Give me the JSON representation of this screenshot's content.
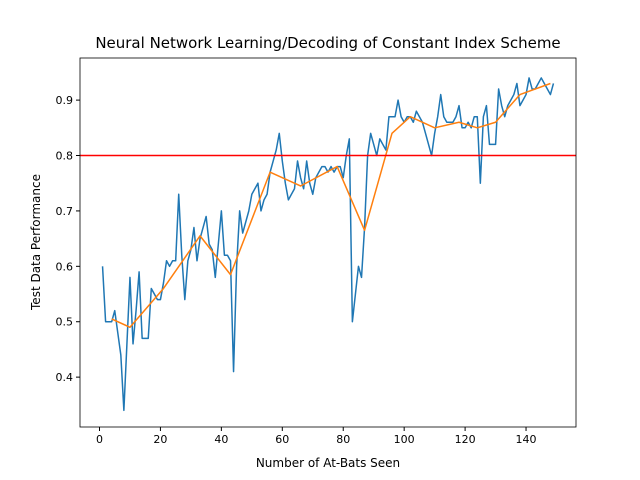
{
  "chart_data": {
    "type": "line",
    "title": "Neural Network Learning/Decoding of Constant Index Scheme",
    "x_label": "Number of At-Bats Seen",
    "y_label": "Test Data Performance",
    "xlim": [
      -6.4,
      156.4
    ],
    "ylim": [
      0.31,
      0.976
    ],
    "xticks": [
      0,
      20,
      40,
      60,
      80,
      100,
      120,
      140
    ],
    "yticks": [
      0.4,
      0.5,
      0.6,
      0.7,
      0.8,
      0.9
    ],
    "hline": {
      "value": 0.8,
      "color": "#ff0000"
    },
    "series": [
      {
        "color": "#1f77b4",
        "x": [
          1,
          2,
          3,
          4,
          5,
          6,
          7,
          8,
          9,
          10,
          11,
          12,
          13,
          14,
          15,
          16,
          17,
          18,
          19,
          20,
          21,
          22,
          23,
          24,
          25,
          26,
          27,
          28,
          29,
          30,
          31,
          32,
          33,
          34,
          35,
          36,
          37,
          38,
          39,
          40,
          41,
          42,
          43,
          44,
          45,
          46,
          47,
          48,
          49,
          50,
          51,
          52,
          53,
          54,
          55,
          56,
          57,
          58,
          59,
          60,
          61,
          62,
          63,
          64,
          65,
          66,
          67,
          68,
          69,
          70,
          71,
          72,
          73,
          74,
          75,
          76,
          77,
          78,
          79,
          80,
          81,
          82,
          83,
          84,
          85,
          86,
          87,
          88,
          89,
          90,
          91,
          92,
          93,
          94,
          95,
          96,
          97,
          98,
          99,
          100,
          101,
          102,
          103,
          104,
          105,
          106,
          107,
          108,
          109,
          110,
          111,
          112,
          113,
          114,
          115,
          116,
          117,
          118,
          119,
          120,
          121,
          122,
          123,
          124,
          125,
          126,
          127,
          128,
          129,
          130,
          131,
          132,
          133,
          134,
          135,
          136,
          137,
          138,
          139,
          140,
          141,
          142,
          143,
          144,
          145,
          146,
          147,
          148,
          149
        ],
        "values": [
          0.6,
          0.5,
          0.5,
          0.5,
          0.52,
          0.48,
          0.44,
          0.34,
          0.46,
          0.58,
          0.46,
          0.52,
          0.59,
          0.47,
          0.47,
          0.47,
          0.56,
          0.55,
          0.54,
          0.54,
          0.57,
          0.61,
          0.6,
          0.61,
          0.61,
          0.73,
          0.62,
          0.54,
          0.61,
          0.63,
          0.67,
          0.61,
          0.65,
          0.67,
          0.69,
          0.64,
          0.63,
          0.58,
          0.64,
          0.7,
          0.62,
          0.62,
          0.61,
          0.41,
          0.6,
          0.7,
          0.66,
          0.68,
          0.7,
          0.73,
          0.74,
          0.75,
          0.7,
          0.72,
          0.73,
          0.77,
          0.79,
          0.81,
          0.84,
          0.79,
          0.75,
          0.72,
          0.73,
          0.74,
          0.79,
          0.76,
          0.74,
          0.79,
          0.75,
          0.73,
          0.76,
          0.77,
          0.78,
          0.78,
          0.77,
          0.78,
          0.77,
          0.78,
          0.78,
          0.76,
          0.8,
          0.83,
          0.5,
          0.55,
          0.6,
          0.58,
          0.67,
          0.8,
          0.84,
          0.82,
          0.8,
          0.83,
          0.82,
          0.81,
          0.87,
          0.87,
          0.87,
          0.9,
          0.87,
          0.86,
          0.87,
          0.87,
          0.86,
          0.88,
          0.87,
          0.86,
          0.84,
          0.82,
          0.8,
          0.84,
          0.87,
          0.91,
          0.87,
          0.86,
          0.86,
          0.86,
          0.87,
          0.89,
          0.85,
          0.85,
          0.86,
          0.85,
          0.87,
          0.87,
          0.75,
          0.87,
          0.89,
          0.82,
          0.82,
          0.82,
          0.92,
          0.89,
          0.87,
          0.89,
          0.9,
          0.91,
          0.93,
          0.89,
          0.9,
          0.91,
          0.94,
          0.92,
          0.92,
          0.93,
          0.94,
          0.93,
          0.92,
          0.91,
          0.93
        ]
      },
      {
        "color": "#ff7f0e",
        "x": [
          4,
          10,
          21,
          33,
          43,
          56,
          66,
          78,
          87,
          96,
          102,
          110,
          118,
          124,
          130,
          138,
          148
        ],
        "values": [
          0.505,
          0.49,
          0.56,
          0.655,
          0.585,
          0.77,
          0.745,
          0.78,
          0.665,
          0.84,
          0.87,
          0.85,
          0.86,
          0.85,
          0.86,
          0.91,
          0.93
        ]
      }
    ]
  }
}
